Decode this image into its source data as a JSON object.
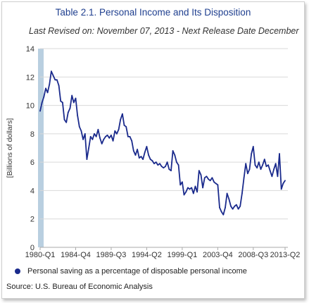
{
  "header": {
    "title": "Table 2.1. Personal Income and Its Disposition",
    "subtitle": "Last Revised on: November 07, 2013 - Next Release Date December"
  },
  "legend": {
    "label": "Personal saving as a percentage of disposable personal income"
  },
  "source": "Source: U.S. Bureau of Economic Analysis",
  "colors": {
    "series": "#1a2a8c",
    "recession_band": "#b9cfe0",
    "grid": "#d9d9d9"
  },
  "chart_data": {
    "type": "line",
    "ylabel": "[Billions of dollars]",
    "ylim": [
      0,
      14
    ],
    "yticks": [
      0,
      2,
      4,
      6,
      8,
      10,
      12,
      14
    ],
    "xticks": [
      "1980-Q1",
      "1984-Q4",
      "1989-Q3",
      "1994-Q2",
      "1999-Q1",
      "2003-Q4",
      "2008-Q3",
      "2013-Q2"
    ],
    "x_start": "1980-Q1",
    "series": [
      {
        "name": "Personal saving as a percentage of disposable personal income",
        "values": [
          9.6,
          10.2,
          10.6,
          11.2,
          10.9,
          11.5,
          12.4,
          12.1,
          11.8,
          11.8,
          11.4,
          10.3,
          10.2,
          9.0,
          8.8,
          9.5,
          9.8,
          10.7,
          10.2,
          10.5,
          9.3,
          8.5,
          8.2,
          7.6,
          8.0,
          6.2,
          7.0,
          7.8,
          7.6,
          8.0,
          7.8,
          8.3,
          7.7,
          7.3,
          7.6,
          7.8,
          7.9,
          7.7,
          7.9,
          7.5,
          8.2,
          8.0,
          8.3,
          9.0,
          9.4,
          8.6,
          8.5,
          7.8,
          7.8,
          7.5,
          6.8,
          6.5,
          6.9,
          6.3,
          6.4,
          6.2,
          6.7,
          7.1,
          6.5,
          6.2,
          6.1,
          5.9,
          6.0,
          5.8,
          5.9,
          5.7,
          5.6,
          5.7,
          6.0,
          5.5,
          5.4,
          6.8,
          6.5,
          6.0,
          5.8,
          4.4,
          4.6,
          3.7,
          3.9,
          4.2,
          4.1,
          4.2,
          3.8,
          4.3,
          3.9,
          5.4,
          5.1,
          4.2,
          4.9,
          5.0,
          4.8,
          4.7,
          4.9,
          4.6,
          4.5,
          4.4,
          2.8,
          2.5,
          2.3,
          2.8,
          3.8,
          3.4,
          2.9,
          2.7,
          2.9,
          3.0,
          2.7,
          2.9,
          3.8,
          4.9,
          5.9,
          5.2,
          5.5,
          6.6,
          7.1,
          5.8,
          5.6,
          6.0,
          5.5,
          5.8,
          6.2,
          5.7,
          5.8,
          5.4,
          5.0,
          5.5,
          5.9,
          5.0,
          6.6,
          4.1,
          4.5,
          4.7
        ]
      }
    ]
  }
}
